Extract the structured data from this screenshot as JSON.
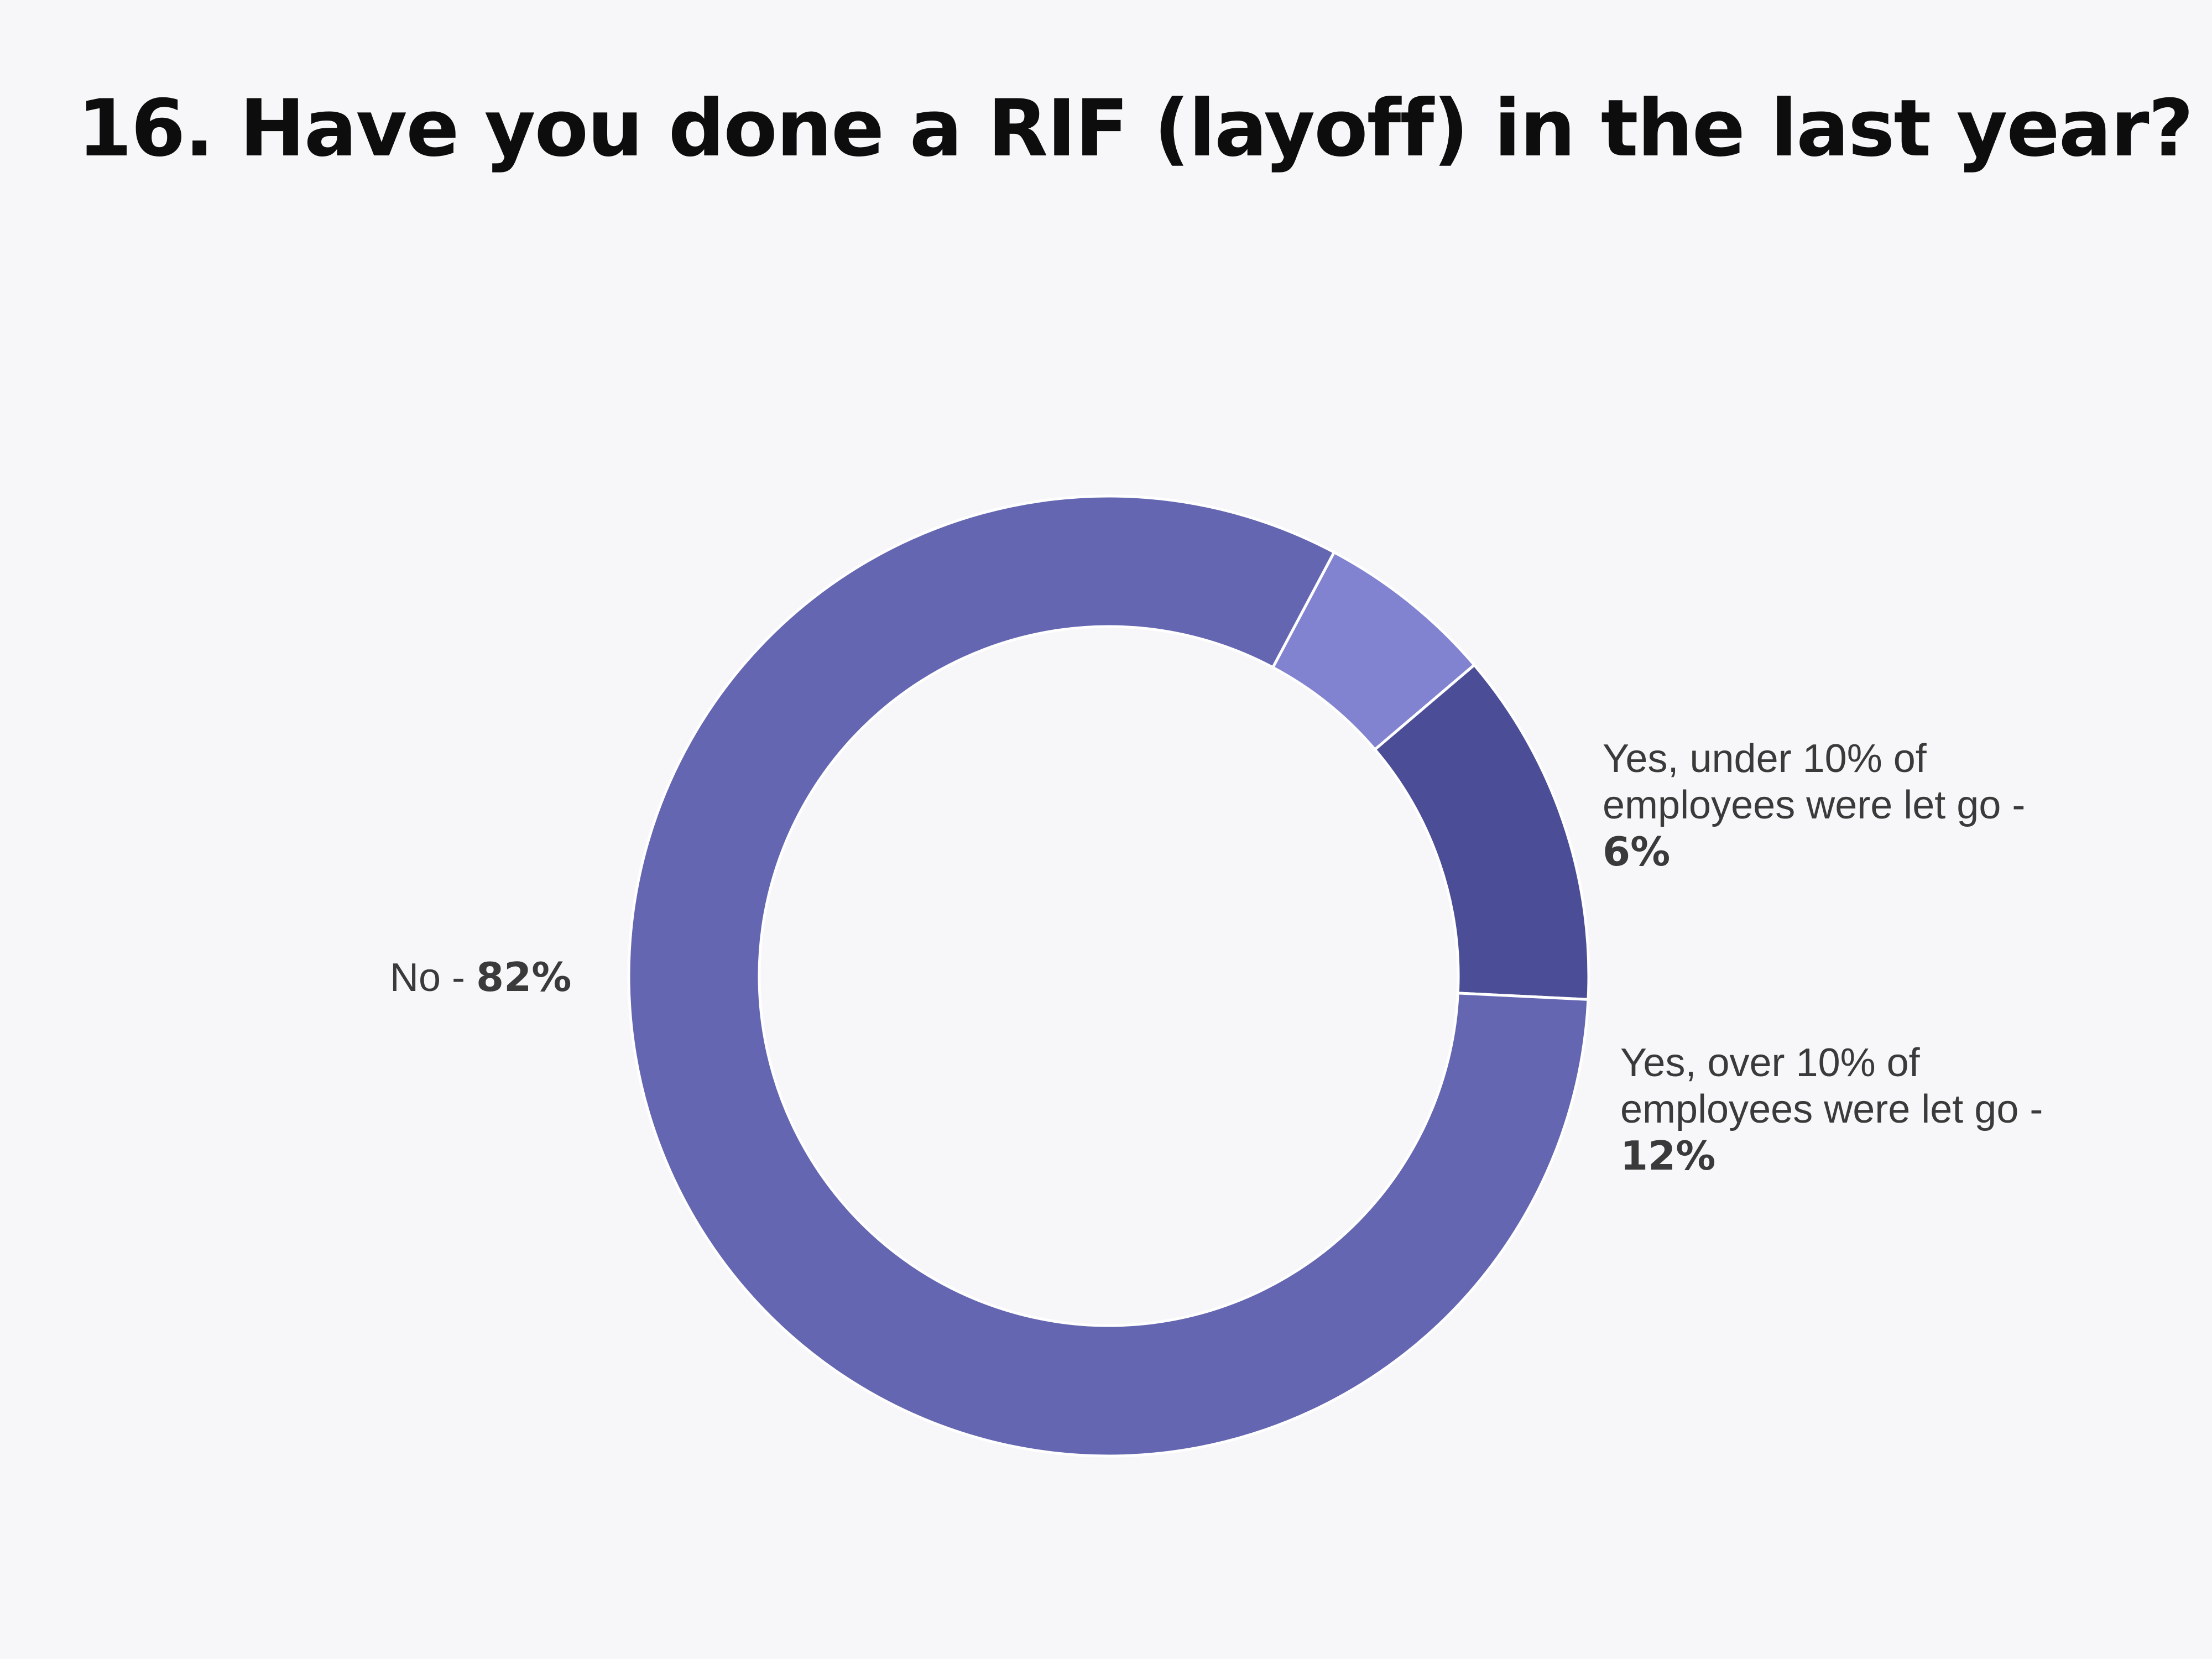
{
  "chart_data": {
    "type": "pie",
    "variant": "donut",
    "title": "16. Have you done a RIF (layoff) in the last year?",
    "slices": [
      {
        "id": "under",
        "label": "Yes, under 10% of employees were let go",
        "label_text": "Yes, under 10% of employees were let go",
        "separator": " - ",
        "value_text": "6%",
        "value": 6,
        "color": "#8183d1"
      },
      {
        "id": "over",
        "label": "Yes, over 10% of employees were let go",
        "label_text": "Yes, over 10% of employees were let go",
        "separator": " - ",
        "value_text": "12%",
        "value": 12,
        "color": "#4b4e96"
      },
      {
        "id": "no",
        "label": "No",
        "label_text": "No",
        "separator": " - ",
        "value_text": "82%",
        "value": 82,
        "color": "#6466b2"
      }
    ],
    "legend": "none",
    "background": "#f7f7fa"
  }
}
